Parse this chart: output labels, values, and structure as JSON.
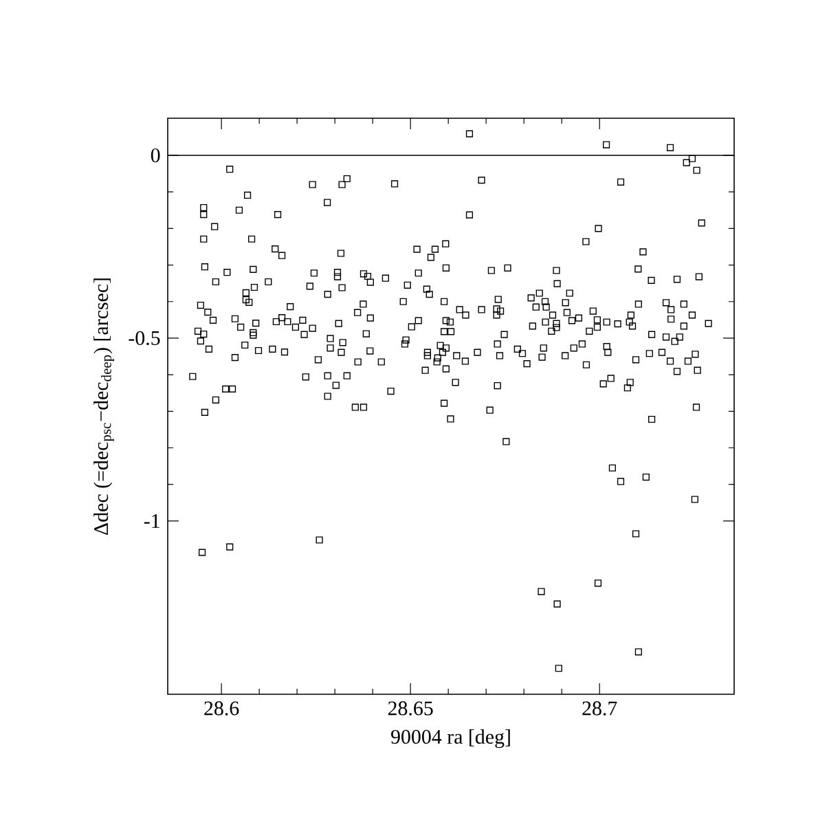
{
  "chart_data": {
    "type": "scatter",
    "xlabel": "90004 ra [deg]",
    "ylabel": "Δdec (=dec$_{psc}$−dec$_{deep}$) [arcsec]",
    "xlim": [
      28.5858,
      28.7356
    ],
    "ylim": [
      -1.474,
      0.1015
    ],
    "xticks": [
      28.6,
      28.65,
      28.7
    ],
    "yticks": [
      -1,
      -0.5,
      0
    ],
    "marker": "square",
    "ref_lines": [
      {
        "axis": "y",
        "value": 0
      }
    ],
    "series": [
      {
        "color": "#000000",
        "x": [
          28.6022,
          28.6069,
          28.5953,
          28.5953,
          28.6047,
          28.6149,
          28.5982,
          28.5953,
          28.608,
          28.6142,
          28.616,
          28.5956,
          28.6015,
          28.6084,
          28.5985,
          28.6087,
          28.6124,
          28.6065,
          28.6065,
          28.6073,
          28.5945,
          28.5964,
          28.5978,
          28.6182,
          28.616,
          28.6145,
          28.6175,
          28.6196,
          28.6215,
          28.6036,
          28.6091,
          28.6051,
          28.6084,
          28.6084,
          28.5938,
          28.5953,
          28.5945,
          28.6062,
          28.5967,
          28.6098,
          28.6135,
          28.6167,
          28.6036,
          28.5924,
          28.6011,
          28.6029,
          28.5985,
          28.5956,
          28.5949,
          28.6022,
          28.6656,
          28.6241,
          28.6319,
          28.6332,
          28.6458,
          28.6688,
          28.628,
          28.6656,
          28.6316,
          28.6517,
          28.6565,
          28.6593,
          28.6554,
          28.6245,
          28.6307,
          28.6307,
          28.6234,
          28.6319,
          28.6281,
          28.6376,
          28.6387,
          28.6394,
          28.6434,
          28.6521,
          28.6594,
          28.6492,
          28.6543,
          28.655,
          28.6481,
          28.6589,
          28.6714,
          28.6757,
          28.6732,
          28.6688,
          28.6728,
          28.6738,
          28.6728,
          28.663,
          28.6646,
          28.6375,
          28.636,
          28.6394,
          28.6241,
          28.6219,
          28.631,
          28.6503,
          28.6521,
          28.6594,
          28.6605,
          28.6589,
          28.6607,
          28.6748,
          28.673,
          28.6383,
          28.6288,
          28.6321,
          28.6288,
          28.6317,
          28.6488,
          28.6485,
          28.6579,
          28.6594,
          28.6545,
          28.6585,
          28.6545,
          28.6572,
          28.657,
          28.6622,
          28.6645,
          28.6677,
          28.6736,
          28.6783,
          28.6796,
          28.6393,
          28.6256,
          28.6361,
          28.6423,
          28.6223,
          28.6281,
          28.6332,
          28.6303,
          28.6539,
          28.6594,
          28.6619,
          28.673,
          28.6281,
          28.6448,
          28.6354,
          28.6376,
          28.6589,
          28.6606,
          28.671,
          28.6753,
          28.6259,
          28.7018,
          28.7187,
          28.7245,
          28.723,
          28.7257,
          28.7056,
          28.6997,
          28.6964,
          28.7115,
          28.727,
          28.6886,
          28.6888,
          28.7102,
          28.7137,
          28.7205,
          28.7263,
          28.6819,
          28.6841,
          28.6856,
          28.6832,
          28.6859,
          28.6921,
          28.691,
          28.6914,
          28.6927,
          28.6945,
          28.6876,
          28.6857,
          28.6886,
          28.6886,
          28.6873,
          28.6823,
          28.6983,
          28.6994,
          28.6994,
          28.6973,
          28.7019,
          28.7048,
          28.7083,
          28.7079,
          28.7087,
          28.7103,
          28.7176,
          28.7189,
          28.7189,
          28.7223,
          28.7245,
          28.7223,
          28.7288,
          28.7138,
          28.7176,
          28.7212,
          28.7199,
          28.6808,
          28.6852,
          28.6848,
          28.6909,
          28.6932,
          28.6954,
          28.6965,
          28.7019,
          28.7022,
          28.7096,
          28.7132,
          28.7165,
          28.7187,
          28.7205,
          28.7234,
          28.7253,
          28.7259,
          28.701,
          28.703,
          28.7074,
          28.7081,
          28.7256,
          28.7138,
          28.7034,
          28.7056,
          28.7123,
          28.7252,
          28.7096,
          28.6846,
          28.6996,
          28.6888,
          28.7103,
          28.6892
        ],
        "values": [
          -0.038,
          -0.109,
          -0.143,
          -0.162,
          -0.15,
          -0.162,
          -0.195,
          -0.229,
          -0.229,
          -0.256,
          -0.274,
          -0.305,
          -0.32,
          -0.312,
          -0.346,
          -0.361,
          -0.346,
          -0.376,
          -0.395,
          -0.402,
          -0.41,
          -0.429,
          -0.451,
          -0.414,
          -0.444,
          -0.455,
          -0.455,
          -0.47,
          -0.451,
          -0.447,
          -0.459,
          -0.47,
          -0.485,
          -0.492,
          -0.481,
          -0.489,
          -0.508,
          -0.519,
          -0.53,
          -0.534,
          -0.53,
          -0.538,
          -0.553,
          -0.605,
          -0.639,
          -0.639,
          -0.669,
          -0.703,
          -1.086,
          -1.071,
          0.059,
          -0.08,
          -0.08,
          -0.064,
          -0.078,
          -0.068,
          -0.129,
          -0.163,
          -0.268,
          -0.257,
          -0.257,
          -0.242,
          -0.279,
          -0.322,
          -0.32,
          -0.332,
          -0.358,
          -0.362,
          -0.38,
          -0.324,
          -0.331,
          -0.347,
          -0.336,
          -0.322,
          -0.308,
          -0.355,
          -0.366,
          -0.38,
          -0.4,
          -0.4,
          -0.315,
          -0.308,
          -0.394,
          -0.422,
          -0.42,
          -0.426,
          -0.437,
          -0.422,
          -0.437,
          -0.407,
          -0.43,
          -0.445,
          -0.473,
          -0.49,
          -0.46,
          -0.469,
          -0.452,
          -0.452,
          -0.456,
          -0.482,
          -0.482,
          -0.49,
          -0.516,
          -0.488,
          -0.501,
          -0.512,
          -0.527,
          -0.539,
          -0.505,
          -0.516,
          -0.52,
          -0.527,
          -0.539,
          -0.539,
          -0.548,
          -0.554,
          -0.565,
          -0.548,
          -0.563,
          -0.539,
          -0.548,
          -0.53,
          -0.542,
          -0.535,
          -0.559,
          -0.565,
          -0.565,
          -0.606,
          -0.603,
          -0.603,
          -0.629,
          -0.588,
          -0.584,
          -0.621,
          -0.63,
          -0.659,
          -0.645,
          -0.689,
          -0.689,
          -0.678,
          -0.721,
          -0.697,
          -0.783,
          -1.052,
          0.029,
          0.021,
          -0.009,
          -0.02,
          -0.041,
          -0.073,
          -0.2,
          -0.236,
          -0.264,
          -0.185,
          -0.315,
          -0.351,
          -0.311,
          -0.342,
          -0.339,
          -0.332,
          -0.39,
          -0.377,
          -0.4,
          -0.415,
          -0.415,
          -0.377,
          -0.403,
          -0.43,
          -0.452,
          -0.445,
          -0.437,
          -0.456,
          -0.46,
          -0.471,
          -0.481,
          -0.467,
          -0.426,
          -0.45,
          -0.47,
          -0.481,
          -0.456,
          -0.461,
          -0.437,
          -0.456,
          -0.467,
          -0.407,
          -0.403,
          -0.422,
          -0.448,
          -0.407,
          -0.437,
          -0.467,
          -0.46,
          -0.49,
          -0.497,
          -0.497,
          -0.509,
          -0.57,
          -0.527,
          -0.552,
          -0.548,
          -0.527,
          -0.516,
          -0.573,
          -0.523,
          -0.539,
          -0.559,
          -0.542,
          -0.539,
          -0.563,
          -0.591,
          -0.563,
          -0.544,
          -0.588,
          -0.625,
          -0.61,
          -0.636,
          -0.621,
          -0.689,
          -0.722,
          -0.855,
          -0.892,
          -0.88,
          -0.941,
          -1.035,
          -1.193,
          -1.17,
          -1.227,
          -1.358,
          -1.403
        ]
      }
    ]
  }
}
